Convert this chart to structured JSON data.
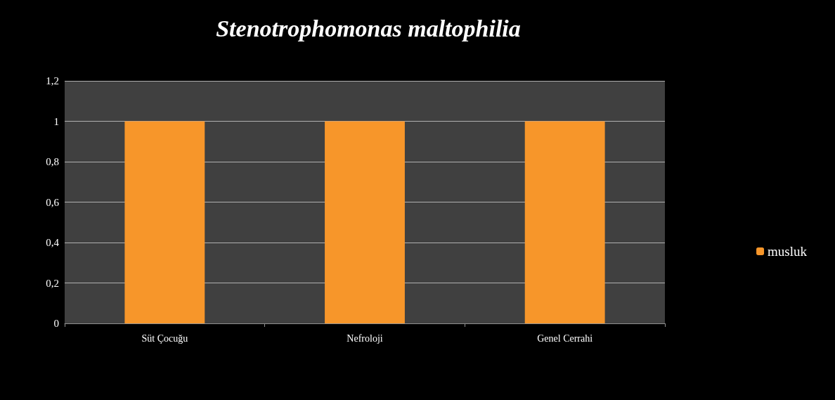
{
  "chart_data": {
    "type": "bar",
    "title": "Stenotrophomonas maltophilia",
    "categories": [
      "Süt Çocuğu",
      "Nefroloji",
      "Genel Cerrahi"
    ],
    "series": [
      {
        "name": "musluk",
        "color": "#f7962a",
        "values": [
          1,
          1,
          1
        ]
      }
    ],
    "ylim": [
      0,
      1.2
    ],
    "yticks": [
      0,
      {
        "value": 0.2,
        "label": "0,2"
      },
      {
        "value": 0.4,
        "label": "0,4"
      },
      {
        "value": 0.6,
        "label": "0,6"
      },
      {
        "value": 0.8,
        "label": "0,8"
      },
      1,
      {
        "value": 1.2,
        "label": "1,2"
      }
    ],
    "grid": "y",
    "legend": "right"
  }
}
